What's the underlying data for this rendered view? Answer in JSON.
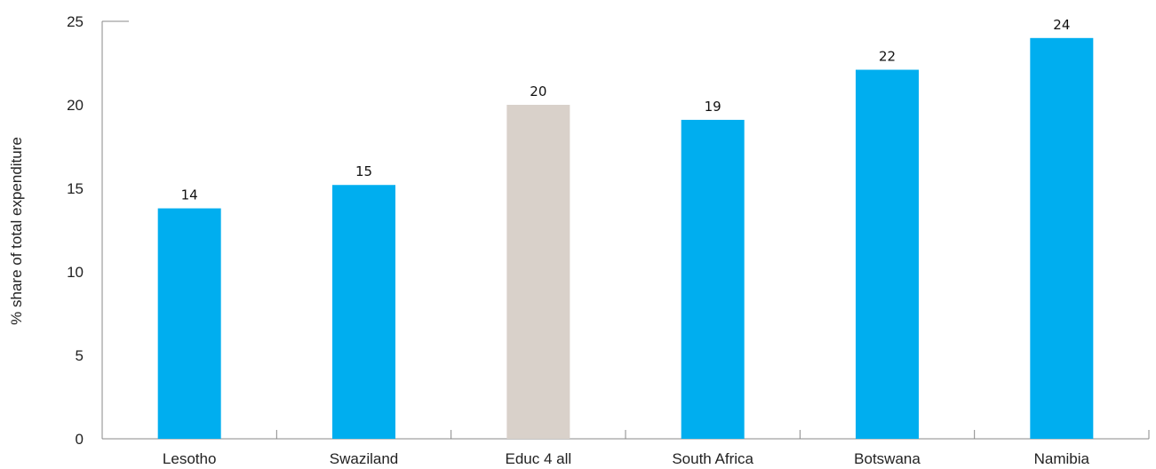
{
  "chart_data": {
    "type": "bar",
    "categories": [
      "Lesotho",
      "Swaziland",
      "Educ 4 all",
      "South Africa",
      "Botswana",
      "Namibia"
    ],
    "values": [
      13.8,
      15.2,
      20.0,
      19.1,
      22.1,
      24.0
    ],
    "data_labels": [
      "14",
      "15",
      "20",
      "19",
      "22",
      "24"
    ],
    "bar_colors": [
      "#00AEEF",
      "#00AEEF",
      "#D9D1CA",
      "#00AEEF",
      "#00AEEF",
      "#00AEEF"
    ],
    "ylabel": "% share of total expenditure",
    "xlabel": "",
    "ylim": [
      0,
      25
    ],
    "yticks": [
      "0",
      "5",
      "10",
      "15",
      "20",
      "25"
    ],
    "grid": false,
    "legend": "none"
  }
}
